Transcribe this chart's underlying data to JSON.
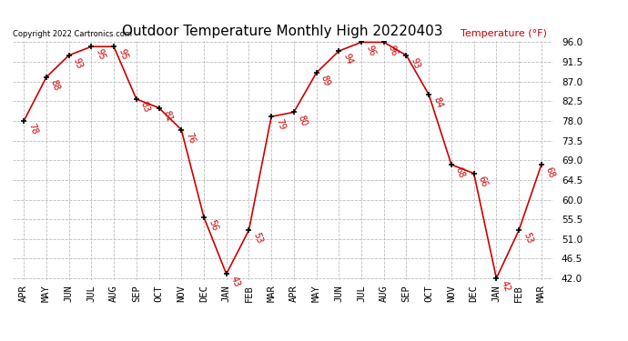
{
  "title": "Outdoor Temperature Monthly High 20220403",
  "copyright": "Copyright 2022 Cartronics.com",
  "ylabel": "Temperature (°F)",
  "months": [
    "APR",
    "MAY",
    "JUN",
    "JUL",
    "AUG",
    "SEP",
    "OCT",
    "NOV",
    "DEC",
    "JAN",
    "FEB",
    "MAR",
    "APR",
    "MAY",
    "JUN",
    "JUL",
    "AUG",
    "SEP",
    "OCT",
    "NOV",
    "DEC",
    "JAN",
    "FEB",
    "MAR"
  ],
  "values": [
    78,
    88,
    93,
    95,
    95,
    83,
    81,
    76,
    56,
    43,
    53,
    79,
    80,
    89,
    94,
    96,
    96,
    93,
    84,
    68,
    66,
    42,
    53,
    68
  ],
  "ylim_min": 42.0,
  "ylim_max": 96.0,
  "line_color": "#cc0000",
  "marker_color": "#000000",
  "label_color": "#cc0000",
  "title_color": "#000000",
  "bg_color": "#ffffff",
  "grid_color": "#bbbbbb",
  "copyright_color": "#000000",
  "yticks": [
    42.0,
    46.5,
    51.0,
    55.5,
    60.0,
    64.5,
    69.0,
    73.5,
    78.0,
    82.5,
    87.0,
    91.5,
    96.0
  ],
  "title_fontsize": 11,
  "tick_fontsize": 7.5,
  "label_fontsize": 7,
  "value_fontsize": 7
}
